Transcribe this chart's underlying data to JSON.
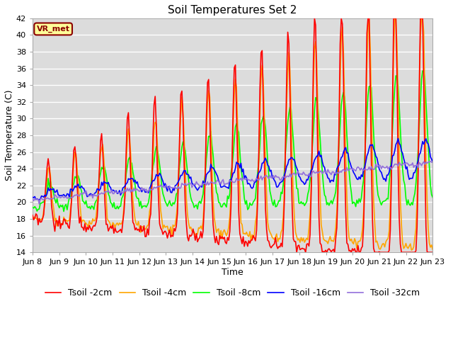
{
  "title": "Soil Temperatures Set 2",
  "xlabel": "Time",
  "ylabel": "Soil Temperature (C)",
  "ylim": [
    14,
    42
  ],
  "x_tick_labels": [
    "Jun 8",
    "Jun 9",
    "Jun 10",
    "Jun 11",
    "Jun 12",
    "Jun 13",
    "Jun 14",
    "Jun 15",
    "Jun 16",
    "Jun 17",
    "Jun 18",
    "Jun 19",
    "Jun 20",
    "Jun 21",
    "Jun 22",
    "Jun 23"
  ],
  "legend_labels": [
    "Tsoil -2cm",
    "Tsoil -4cm",
    "Tsoil -8cm",
    "Tsoil -16cm",
    "Tsoil -32cm"
  ],
  "colors": [
    "red",
    "orange",
    "lime",
    "blue",
    "mediumpurple"
  ],
  "annotation_text": "VR_met",
  "annotation_color": "#8B0000",
  "annotation_bg": "#FFFF99",
  "background_color": "#DCDCDC",
  "grid_color": "white",
  "title_fontsize": 11,
  "label_fontsize": 9,
  "tick_fontsize": 8,
  "legend_fontsize": 9,
  "linewidth": 1.2
}
